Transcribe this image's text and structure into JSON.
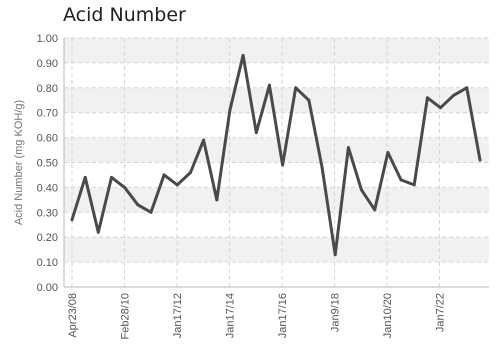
{
  "chart_data": {
    "type": "line",
    "title": "Acid Number",
    "ylabel": "Acid Number (mg KOH/g)",
    "xlabel": "",
    "ylim": [
      0,
      1.0
    ],
    "y_ticks": [
      "0.00",
      "0.10",
      "0.20",
      "0.30",
      "0.40",
      "0.50",
      "0.60",
      "0.70",
      "0.80",
      "0.90",
      "1.00"
    ],
    "x_tick_labels": [
      "Apr23/08",
      "Feb28/10",
      "Jan17/12",
      "Jan17/14",
      "Jan17/16",
      "Jan9/18",
      "Jan10/20",
      "Jan7/22"
    ],
    "grid": true,
    "colors": {
      "line": "#4a4a4a",
      "band": "#f1f1f1",
      "grid": "#d6d6d6"
    },
    "series": [
      {
        "values": [
          0.27,
          0.44,
          0.22,
          0.44,
          0.4,
          0.33,
          0.3,
          0.45,
          0.41,
          0.46,
          0.59,
          0.35,
          0.71,
          0.93,
          0.62,
          0.81,
          0.49,
          0.8,
          0.75,
          0.48,
          0.13,
          0.56,
          0.39,
          0.31,
          0.54,
          0.43,
          0.41,
          0.76,
          0.72,
          0.77,
          0.8,
          0.51
        ]
      }
    ]
  }
}
